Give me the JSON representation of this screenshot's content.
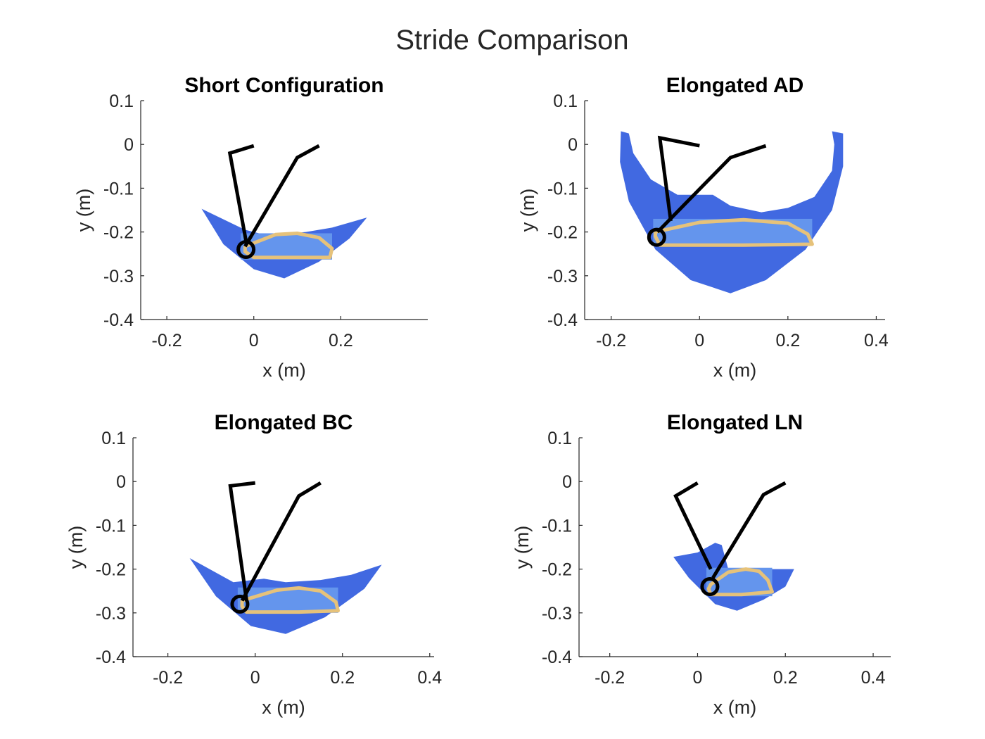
{
  "figure": {
    "title": "Stride Comparison",
    "colors": {
      "workspace": "#4169E1",
      "rect": "#6495ED",
      "trajectory": "#E6C27A",
      "linkage": "#000000",
      "axis": "#262626"
    }
  },
  "chart_data": [
    {
      "type": "line",
      "title": "Short Configuration",
      "xlabel": "x (m)",
      "ylabel": "y (m)",
      "xlim": [
        -0.26,
        0.4
      ],
      "ylim": [
        -0.4,
        0.1
      ],
      "xticks": [
        -0.2,
        0,
        0.2
      ],
      "xtick_labels": [
        "-0.2",
        "0",
        "0.2"
      ],
      "yticks": [
        0.1,
        0,
        -0.1,
        -0.2,
        -0.3,
        -0.4
      ],
      "ytick_labels": [
        "0.1",
        "0",
        "-0.1",
        "-0.2",
        "-0.3",
        "-0.4"
      ],
      "box": false,
      "workspace": [
        [
          -0.12,
          -0.147
        ],
        [
          -0.02,
          -0.195
        ],
        [
          0.02,
          -0.205
        ],
        [
          0.07,
          -0.204
        ],
        [
          0.12,
          -0.2
        ],
        [
          0.18,
          -0.19
        ],
        [
          0.26,
          -0.167
        ],
        [
          0.22,
          -0.215
        ],
        [
          0.15,
          -0.268
        ],
        [
          0.07,
          -0.306
        ],
        [
          0.0,
          -0.285
        ],
        [
          -0.07,
          -0.228
        ]
      ],
      "rect": {
        "x": [
          -0.03,
          0.18
        ],
        "y": [
          -0.263,
          -0.203
        ]
      },
      "trajectory": [
        [
          -0.02,
          -0.233
        ],
        [
          0.05,
          -0.206
        ],
        [
          0.1,
          -0.203
        ],
        [
          0.15,
          -0.213
        ],
        [
          0.18,
          -0.238
        ],
        [
          0.175,
          -0.258
        ],
        [
          0.1,
          -0.258
        ],
        [
          0.0,
          -0.258
        ],
        [
          -0.02,
          -0.245
        ]
      ],
      "linkages": [
        [
          [
            0,
            -0.003
          ],
          [
            -0.055,
            -0.02
          ],
          [
            -0.018,
            -0.22
          ]
        ],
        [
          [
            0.15,
            -0.003
          ],
          [
            0.1,
            -0.03
          ],
          [
            -0.02,
            -0.233
          ]
        ]
      ],
      "joint": {
        "x": -0.018,
        "y": -0.24
      }
    },
    {
      "type": "line",
      "title": "Elongated AD",
      "xlabel": "x (m)",
      "ylabel": "y (m)",
      "xlim": [
        -0.26,
        0.42
      ],
      "ylim": [
        -0.4,
        0.1
      ],
      "xticks": [
        -0.2,
        0,
        0.2,
        0.4
      ],
      "xtick_labels": [
        "-0.2",
        "0",
        "0.2",
        "0.4"
      ],
      "yticks": [
        0.1,
        0,
        -0.1,
        -0.2,
        -0.3,
        -0.4
      ],
      "ytick_labels": [
        "0.1",
        "0",
        "-0.1",
        "-0.2",
        "-0.3",
        "-0.4"
      ],
      "box": false,
      "workspace": [
        [
          -0.178,
          0.03
        ],
        [
          -0.16,
          0.025
        ],
        [
          -0.15,
          -0.02
        ],
        [
          -0.11,
          -0.08
        ],
        [
          -0.05,
          -0.115
        ],
        [
          0.03,
          -0.115
        ],
        [
          0.07,
          -0.14
        ],
        [
          0.14,
          -0.155
        ],
        [
          0.2,
          -0.145
        ],
        [
          0.26,
          -0.12
        ],
        [
          0.3,
          -0.06
        ],
        [
          0.305,
          0.0
        ],
        [
          0.3,
          0.03
        ],
        [
          0.325,
          0.025
        ],
        [
          0.325,
          -0.05
        ],
        [
          0.3,
          -0.15
        ],
        [
          0.24,
          -0.24
        ],
        [
          0.15,
          -0.31
        ],
        [
          0.07,
          -0.34
        ],
        [
          -0.02,
          -0.31
        ],
        [
          -0.1,
          -0.24
        ],
        [
          -0.16,
          -0.13
        ],
        [
          -0.18,
          -0.04
        ]
      ],
      "rect": {
        "x": [
          -0.105,
          0.255
        ],
        "y": [
          -0.23,
          -0.17
        ]
      },
      "trajectory": [
        [
          -0.1,
          -0.2
        ],
        [
          0.0,
          -0.178
        ],
        [
          0.1,
          -0.172
        ],
        [
          0.2,
          -0.18
        ],
        [
          0.245,
          -0.205
        ],
        [
          0.255,
          -0.228
        ],
        [
          0.1,
          -0.23
        ],
        [
          -0.09,
          -0.23
        ],
        [
          -0.1,
          -0.21
        ]
      ],
      "linkages": [
        [
          [
            0,
            -0.003
          ],
          [
            -0.09,
            0.015
          ],
          [
            -0.065,
            -0.175
          ]
        ],
        [
          [
            0.15,
            -0.003
          ],
          [
            0.07,
            -0.03
          ],
          [
            -0.095,
            -0.2
          ]
        ]
      ],
      "joint": {
        "x": -0.097,
        "y": -0.212
      }
    },
    {
      "type": "line",
      "title": "Elongated BC",
      "xlabel": "x (m)",
      "ylabel": "y (m)",
      "xlim": [
        -0.28,
        0.41
      ],
      "ylim": [
        -0.4,
        0.1
      ],
      "xticks": [
        -0.2,
        0,
        0.2,
        0.4
      ],
      "xtick_labels": [
        "-0.2",
        "0",
        "0.2",
        "0.4"
      ],
      "yticks": [
        0.1,
        0,
        -0.1,
        -0.2,
        -0.3,
        -0.4
      ],
      "ytick_labels": [
        "0.1",
        "0",
        "-0.1",
        "-0.2",
        "-0.3",
        "-0.4"
      ],
      "box": false,
      "workspace": [
        [
          -0.15,
          -0.175
        ],
        [
          -0.05,
          -0.23
        ],
        [
          0.02,
          -0.222
        ],
        [
          0.07,
          -0.23
        ],
        [
          0.15,
          -0.225
        ],
        [
          0.22,
          -0.213
        ],
        [
          0.29,
          -0.19
        ],
        [
          0.25,
          -0.245
        ],
        [
          0.16,
          -0.31
        ],
        [
          0.07,
          -0.348
        ],
        [
          -0.01,
          -0.33
        ],
        [
          -0.09,
          -0.262
        ]
      ],
      "rect": {
        "x": [
          -0.04,
          0.19
        ],
        "y": [
          -0.3,
          -0.242
        ]
      },
      "trajectory": [
        [
          -0.03,
          -0.272
        ],
        [
          0.05,
          -0.248
        ],
        [
          0.1,
          -0.243
        ],
        [
          0.15,
          -0.25
        ],
        [
          0.185,
          -0.275
        ],
        [
          0.19,
          -0.295
        ],
        [
          0.1,
          -0.298
        ],
        [
          -0.02,
          -0.298
        ],
        [
          -0.03,
          -0.285
        ]
      ],
      "linkages": [
        [
          [
            0,
            -0.003
          ],
          [
            -0.057,
            -0.01
          ],
          [
            -0.02,
            -0.27
          ]
        ],
        [
          [
            0.15,
            -0.003
          ],
          [
            0.1,
            -0.033
          ],
          [
            -0.03,
            -0.272
          ]
        ]
      ],
      "joint": {
        "x": -0.035,
        "y": -0.28
      }
    },
    {
      "type": "line",
      "title": "Elongated LN",
      "xlabel": "x (m)",
      "ylabel": "y (m)",
      "xlim": [
        -0.27,
        0.44
      ],
      "ylim": [
        -0.4,
        0.1
      ],
      "xticks": [
        -0.2,
        0,
        0.2,
        0.4
      ],
      "xtick_labels": [
        "-0.2",
        "0",
        "0.2",
        "0.4"
      ],
      "yticks": [
        0.1,
        0,
        -0.1,
        -0.2,
        -0.3,
        -0.4
      ],
      "ytick_labels": [
        "0.1",
        "0",
        "-0.1",
        "-0.2",
        "-0.3",
        "-0.4"
      ],
      "box": false,
      "workspace": [
        [
          -0.055,
          -0.172
        ],
        [
          0.0,
          -0.162
        ],
        [
          0.04,
          -0.14
        ],
        [
          0.055,
          -0.145
        ],
        [
          0.07,
          -0.2
        ],
        [
          0.12,
          -0.2
        ],
        [
          0.22,
          -0.2
        ],
        [
          0.2,
          -0.24
        ],
        [
          0.15,
          -0.27
        ],
        [
          0.09,
          -0.295
        ],
        [
          0.04,
          -0.28
        ],
        [
          -0.02,
          -0.22
        ]
      ],
      "rect": {
        "x": [
          0.02,
          0.17
        ],
        "y": [
          -0.262,
          -0.197
        ]
      },
      "trajectory": [
        [
          0.03,
          -0.235
        ],
        [
          0.07,
          -0.207
        ],
        [
          0.11,
          -0.2
        ],
        [
          0.14,
          -0.205
        ],
        [
          0.16,
          -0.225
        ],
        [
          0.17,
          -0.252
        ],
        [
          0.1,
          -0.258
        ],
        [
          0.03,
          -0.258
        ],
        [
          0.025,
          -0.245
        ]
      ],
      "linkages": [
        [
          [
            0,
            -0.003
          ],
          [
            -0.05,
            -0.033
          ],
          [
            0.03,
            -0.2
          ]
        ],
        [
          [
            0.2,
            -0.003
          ],
          [
            0.15,
            -0.03
          ],
          [
            0.035,
            -0.22
          ]
        ]
      ],
      "joint": {
        "x": 0.028,
        "y": -0.24
      }
    }
  ]
}
